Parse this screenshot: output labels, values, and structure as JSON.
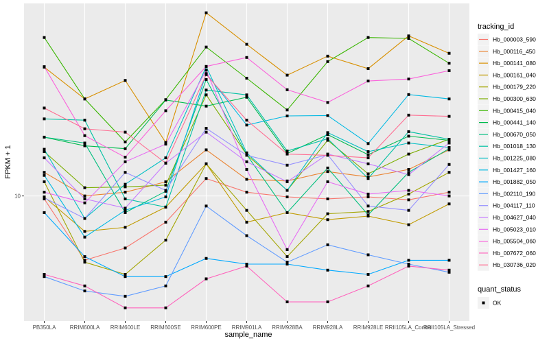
{
  "chart_data": {
    "type": "line",
    "title": "",
    "xlabel": "sample_name",
    "ylabel": "FPKM + 1",
    "y_scale": "log10",
    "ylim": [
      2.7,
      75
    ],
    "y_ticks": [
      10
    ],
    "y_tick_labels": [
      "10"
    ],
    "grid": true,
    "legend_position": "right",
    "categories": [
      "PB350LA",
      "RRIM600LA",
      "RRIM600LE",
      "RRIM600SE",
      "RRIM600PE",
      "RRIM901LA",
      "RRIM928BA",
      "RRIM928LA",
      "RRIM928LE",
      "RRII105LA_Control",
      "RRII105LA_Stressed"
    ],
    "legend_title": "tracking_id",
    "legend2_title": "quant_status",
    "legend2_entries": [
      "OK"
    ],
    "series": [
      {
        "name": "Hb_000003_590",
        "color": "#F8766D",
        "values": [
          9.7,
          5.1,
          5.8,
          7.6,
          12.0,
          10.4,
          9.9,
          9.7,
          9.9,
          9.6,
          10.4
        ]
      },
      {
        "name": "Hb_000116_450",
        "color": "#EA8331",
        "values": [
          12.8,
          10.0,
          10.4,
          11.6,
          16.2,
          11.9,
          11.7,
          12.9,
          12.2,
          13.2,
          16.2
        ]
      },
      {
        "name": "Hb_000141_080",
        "color": "#D89000",
        "values": [
          38.5,
          27.6,
          33.5,
          17.5,
          68.0,
          48.9,
          35.4,
          43.2,
          37.9,
          53.4,
          44.5
        ]
      },
      {
        "name": "Hb_000161_040",
        "color": "#C09B00",
        "values": [
          9.9,
          6.9,
          7.2,
          8.9,
          14.0,
          7.6,
          8.4,
          7.8,
          8.1,
          7.4,
          9.2
        ]
      },
      {
        "name": "Hb_000179_220",
        "color": "#A3A500",
        "values": [
          11.6,
          5.0,
          4.4,
          6.3,
          14.0,
          8.6,
          5.3,
          8.3,
          8.5,
          10.2,
          12.8
        ]
      },
      {
        "name": "Hb_000300_630",
        "color": "#7CAE00",
        "values": [
          15.9,
          10.9,
          11.0,
          11.2,
          28.8,
          15.4,
          10.6,
          17.9,
          12.6,
          15.5,
          18.1
        ]
      },
      {
        "name": "Hb_000415_040",
        "color": "#39B600",
        "values": [
          52.5,
          27.6,
          17.6,
          27.4,
          47.5,
          34.3,
          24.6,
          40.8,
          52.5,
          52.0,
          40.1
        ]
      },
      {
        "name": "Hb_000441_140",
        "color": "#00BB4E",
        "values": [
          18.5,
          16.9,
          16.4,
          27.3,
          25.6,
          28.1,
          15.6,
          19.0,
          15.4,
          18.7,
          17.9
        ]
      },
      {
        "name": "Hb_000670_050",
        "color": "#00BF7D",
        "values": [
          18.5,
          17.4,
          8.4,
          10.5,
          33.8,
          15.4,
          8.4,
          13.4,
          8.2,
          12.8,
          16.4
        ]
      },
      {
        "name": "Hb_001018_130",
        "color": "#00C1A3",
        "values": [
          22.4,
          22.1,
          9.7,
          8.9,
          30.3,
          28.8,
          16.0,
          18.2,
          12.0,
          19.6,
          18.1
        ]
      },
      {
        "name": "Hb_001225_080",
        "color": "#00BFC4",
        "values": [
          16.3,
          7.9,
          11.3,
          14.9,
          38.7,
          15.7,
          10.6,
          19.4,
          15.9,
          17.4,
          16.6
        ]
      },
      {
        "name": "Hb_001427_160",
        "color": "#00B9E3",
        "values": [
          12.4,
          6.5,
          8.6,
          9.9,
          36.0,
          21.0,
          23.1,
          23.2,
          17.3,
          28.9,
          27.6
        ]
      },
      {
        "name": "Hb_001882_050",
        "color": "#00A9FF",
        "values": [
          8.4,
          5.3,
          4.3,
          4.3,
          5.2,
          4.9,
          4.9,
          4.6,
          4.4,
          5.1,
          5.1
        ]
      },
      {
        "name": "Hb_002110_190",
        "color": "#619CFF",
        "values": [
          4.3,
          3.7,
          3.5,
          3.9,
          9.0,
          6.6,
          5.0,
          6.0,
          5.4,
          4.9,
          4.5
        ]
      },
      {
        "name": "Hb_004117_110",
        "color": "#9590FF",
        "values": [
          9.8,
          7.9,
          12.8,
          10.6,
          20.3,
          15.3,
          13.8,
          15.4,
          9.0,
          8.6,
          13.9
        ]
      },
      {
        "name": "Hb_004627_040",
        "color": "#C77CFF",
        "values": [
          14.9,
          9.7,
          8.8,
          14.1,
          19.5,
          14.3,
          11.6,
          15.5,
          14.0,
          12.5,
          17.4
        ]
      },
      {
        "name": "Hb_005023_010",
        "color": "#E76BF3",
        "values": [
          10.4,
          9.3,
          14.3,
          17.2,
          37.3,
          13.2,
          5.7,
          11.6,
          10.2,
          10.6,
          10.0
        ]
      },
      {
        "name": "Hb_005504_060",
        "color": "#FA62DB",
        "values": [
          38.7,
          18.8,
          15.0,
          24.4,
          38.8,
          42.6,
          30.4,
          26.6,
          33.3,
          34.0,
          37.1
        ]
      },
      {
        "name": "Hb_007672_060",
        "color": "#FF62BC",
        "values": [
          4.4,
          3.9,
          3.1,
          3.1,
          4.2,
          4.8,
          3.3,
          3.3,
          3.9,
          4.8,
          4.6
        ]
      },
      {
        "name": "Hb_030736_020",
        "color": "#FF6C91",
        "values": [
          25.1,
          20.2,
          19.5,
          14.1,
          35.6,
          22.1,
          15.5,
          15.3,
          14.9,
          23.3,
          23.0
        ]
      }
    ]
  }
}
